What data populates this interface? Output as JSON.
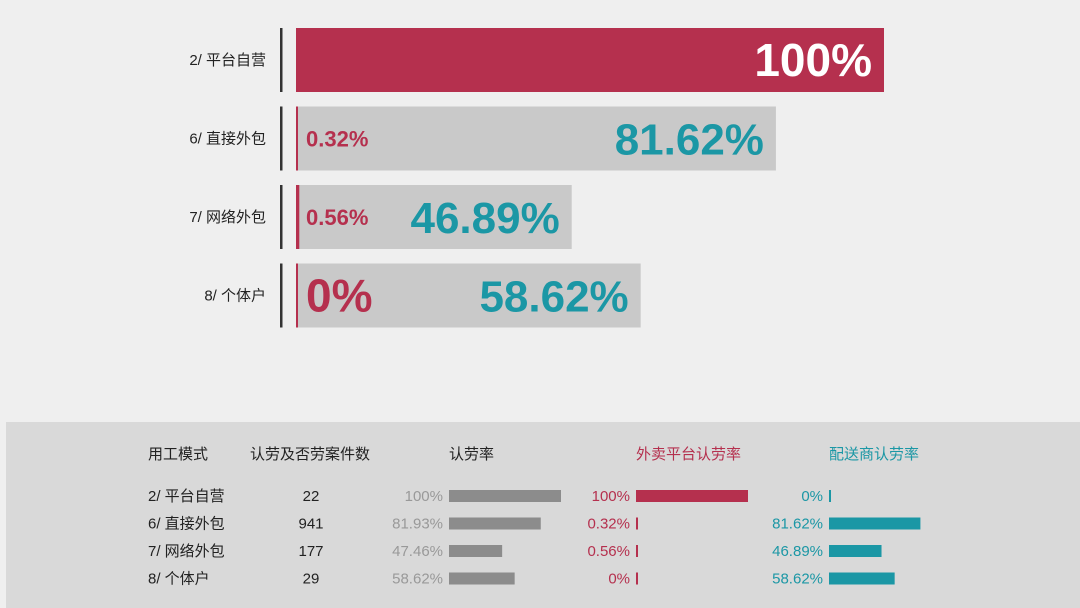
{
  "colors": {
    "platform": "#b5304e",
    "distributor": "#1b97a5",
    "overall": "#8c8c8c",
    "gray_bar": "#c9c9c9",
    "panel": "#d9d9d9",
    "overall_text": "#999999"
  },
  "chart_data": [
    {
      "type": "bar",
      "orientation": "horizontal",
      "categories": [
        "2/ 平台自营",
        "6/ 直接外包",
        "7/ 网络外包",
        "8/ 个体户"
      ],
      "xlim": [
        0,
        100
      ],
      "series": [
        {
          "values": [
            100,
            null,
            null,
            null
          ],
          "labels": [
            "100%",
            "",
            "",
            ""
          ]
        },
        {
          "values": [
            null,
            0.32,
            0.56,
            0
          ],
          "labels": [
            "",
            "0.32%",
            "0.56%",
            "0%"
          ]
        },
        {
          "values": [
            null,
            81.62,
            46.89,
            58.62
          ],
          "labels": [
            "",
            "81.62%",
            "46.89%",
            "58.62%"
          ]
        }
      ]
    },
    {
      "type": "table",
      "headers": [
        "用工模式",
        "认劳及否劳案件数",
        "认劳率",
        "外卖平台认劳率",
        "配送商认劳率"
      ],
      "rows": [
        {
          "mode": "2/ 平台自营",
          "count": "22",
          "overall": 100,
          "overall_label": "100%",
          "platform": 100,
          "platform_label": "100%",
          "distributor": 0,
          "distributor_label": "0%"
        },
        {
          "mode": "6/ 直接外包",
          "count": "941",
          "overall": 81.93,
          "overall_label": "81.93%",
          "platform": 0.32,
          "platform_label": "0.32%",
          "distributor": 81.62,
          "distributor_label": "81.62%"
        },
        {
          "mode": "7/ 网络外包",
          "count": "177",
          "overall": 47.46,
          "overall_label": "47.46%",
          "platform": 0.56,
          "platform_label": "0.56%",
          "distributor": 46.89,
          "distributor_label": "46.89%"
        },
        {
          "mode": "8/ 个体户",
          "count": "29",
          "overall": 58.62,
          "overall_label": "58.62%",
          "platform": 0,
          "platform_label": "0%",
          "distributor": 58.62,
          "distributor_label": "58.62%"
        }
      ]
    }
  ]
}
